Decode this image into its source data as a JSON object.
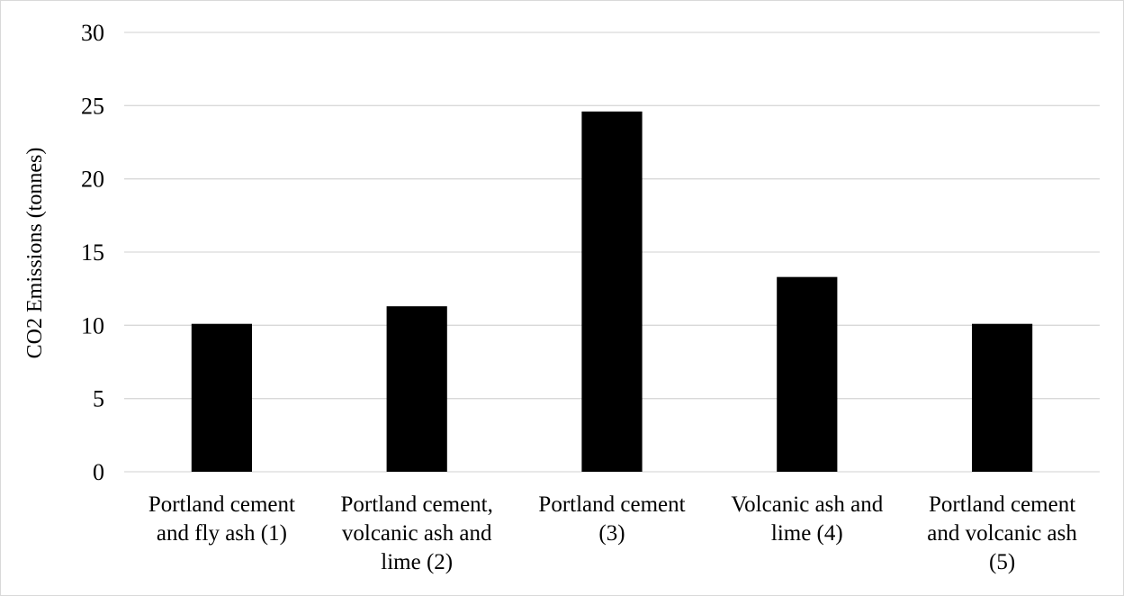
{
  "chart_data": {
    "type": "bar",
    "title": "",
    "xlabel": "",
    "ylabel": "CO2 Emissions  (tonnes)",
    "ylim": [
      0,
      30
    ],
    "yticks": [
      0,
      5,
      10,
      15,
      20,
      25,
      30
    ],
    "grid": true,
    "legend": "none",
    "categories": [
      [
        "Portland cement",
        "and fly ash (1)"
      ],
      [
        "Portland cement,",
        "volcanic ash and",
        "lime (2)"
      ],
      [
        "Portland cement",
        "(3)"
      ],
      [
        "Volcanic ash and",
        "lime (4)"
      ],
      [
        "Portland cement",
        "and volcanic ash",
        "(5)"
      ]
    ],
    "values": [
      10.1,
      11.3,
      24.6,
      13.3,
      10.1
    ],
    "colors": {
      "bar": "#000000",
      "grid": "#d9d9d9",
      "text": "#000000"
    }
  }
}
